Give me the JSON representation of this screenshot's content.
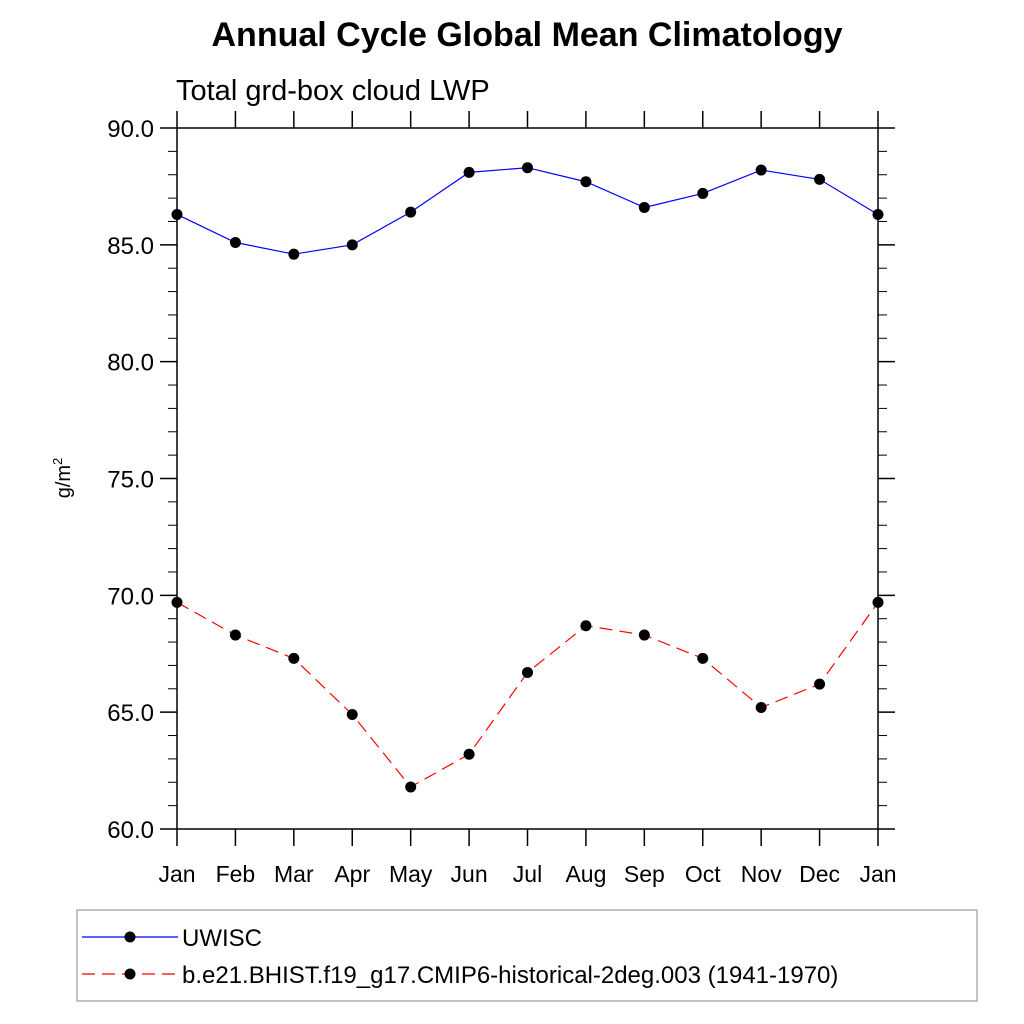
{
  "chart_data": {
    "type": "line",
    "title": "Annual Cycle Global Mean Climatology",
    "subtitle": "Total grd-box cloud LWP",
    "ylabel_base": "g/m",
    "ylabel_sup": "2",
    "xlabel": "",
    "categories": [
      "Jan",
      "Feb",
      "Mar",
      "Apr",
      "May",
      "Jun",
      "Jul",
      "Aug",
      "Sep",
      "Oct",
      "Nov",
      "Dec",
      "Jan"
    ],
    "ylim": [
      60,
      90
    ],
    "yticks": [
      60,
      65,
      70,
      75,
      80,
      85,
      90
    ],
    "ytick_labels": [
      "60.0",
      "65.0",
      "70.0",
      "75.0",
      "80.0",
      "85.0",
      "90.0"
    ],
    "y_minor_step": 1,
    "grid": false,
    "legend_position": "bottom",
    "series": [
      {
        "name": "UWISC",
        "color": "#0000ff",
        "line_style": "solid",
        "marker": "filled-circle",
        "values": [
          86.3,
          85.1,
          84.6,
          85.0,
          86.4,
          88.1,
          88.3,
          87.7,
          86.6,
          87.2,
          88.2,
          87.8,
          86.3
        ]
      },
      {
        "name": "b.e21.BHIST.f19_g17.CMIP6-historical-2deg.003 (1941-1970)",
        "color": "#ff0000",
        "line_style": "dashed",
        "marker": "filled-circle",
        "values": [
          69.7,
          68.3,
          67.3,
          64.9,
          61.8,
          63.2,
          66.7,
          68.7,
          68.3,
          67.3,
          65.2,
          66.2,
          69.7
        ]
      }
    ]
  }
}
